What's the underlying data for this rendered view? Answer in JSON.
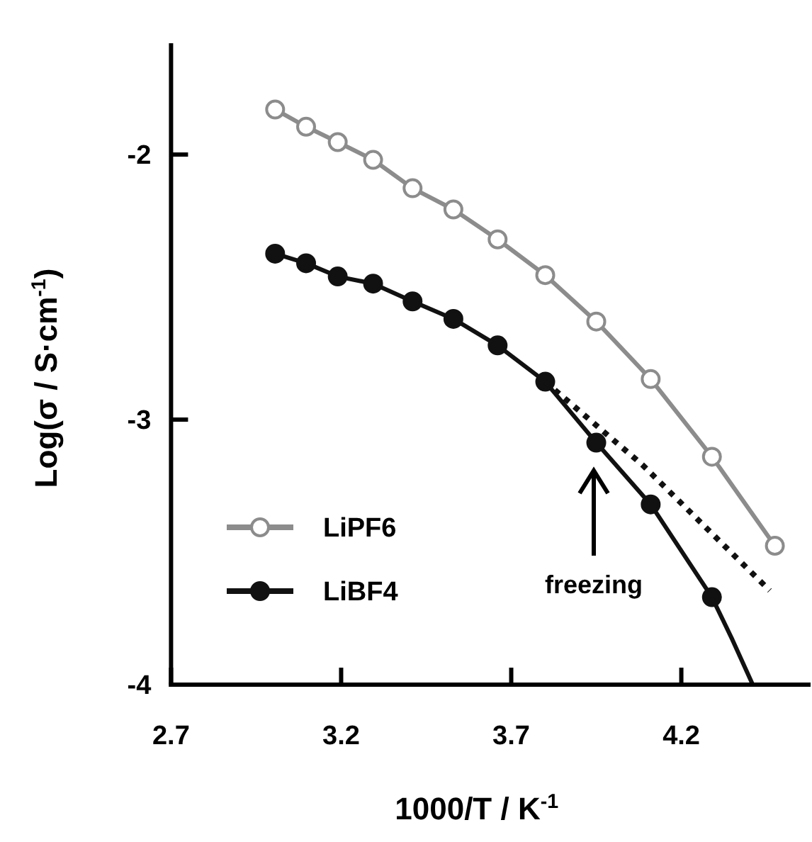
{
  "chart_data": {
    "type": "line",
    "xlabel": "1000/T / K$^{-1}$",
    "ylabel": "Log(σ / S·cm$^{-1}$)",
    "xlim": [
      2.7,
      4.58
    ],
    "ylim": [
      -4,
      -1.58
    ],
    "xticks": [
      2.7,
      3.2,
      3.7,
      4.2
    ],
    "yticks": [
      -2,
      -3,
      -4
    ],
    "grid": false,
    "legend": "bottom left",
    "marker": "circle",
    "line_style": "solid",
    "annotations": [
      "freezing"
    ],
    "series": [
      {
        "name": "LiPF6",
        "color": "#8c8c8c",
        "x": [
          3.006,
          3.097,
          3.19,
          3.294,
          3.41,
          3.53,
          3.66,
          3.8,
          3.95,
          4.11,
          4.29,
          4.475
        ],
        "values": [
          -1.83,
          -1.895,
          -1.953,
          -2.02,
          -2.127,
          -2.207,
          -2.32,
          -2.455,
          -2.63,
          -2.847,
          -3.14,
          -3.476
        ]
      },
      {
        "name": "LiBF4",
        "color": "#111111",
        "x": [
          3.006,
          3.097,
          3.19,
          3.294,
          3.41,
          3.53,
          3.66,
          3.8,
          3.95,
          4.11,
          4.29
        ],
        "values": [
          -2.374,
          -2.41,
          -2.46,
          -2.487,
          -2.554,
          -2.62,
          -2.72,
          -2.857,
          -3.087,
          -3.32,
          -3.67
        ]
      },
      {
        "type": "line",
        "color": "#111111",
        "marker": "none",
        "x": [
          4.29,
          4.35,
          4.41
        ],
        "values": [
          -3.67,
          -3.83,
          -4.0
        ]
      },
      {
        "type": "line",
        "color": "#111111",
        "marker": "none",
        "line_style": "dotted",
        "x": [
          3.8,
          4.085,
          4.46
        ],
        "values": [
          -2.857,
          -3.17,
          -3.645
        ]
      }
    ]
  }
}
